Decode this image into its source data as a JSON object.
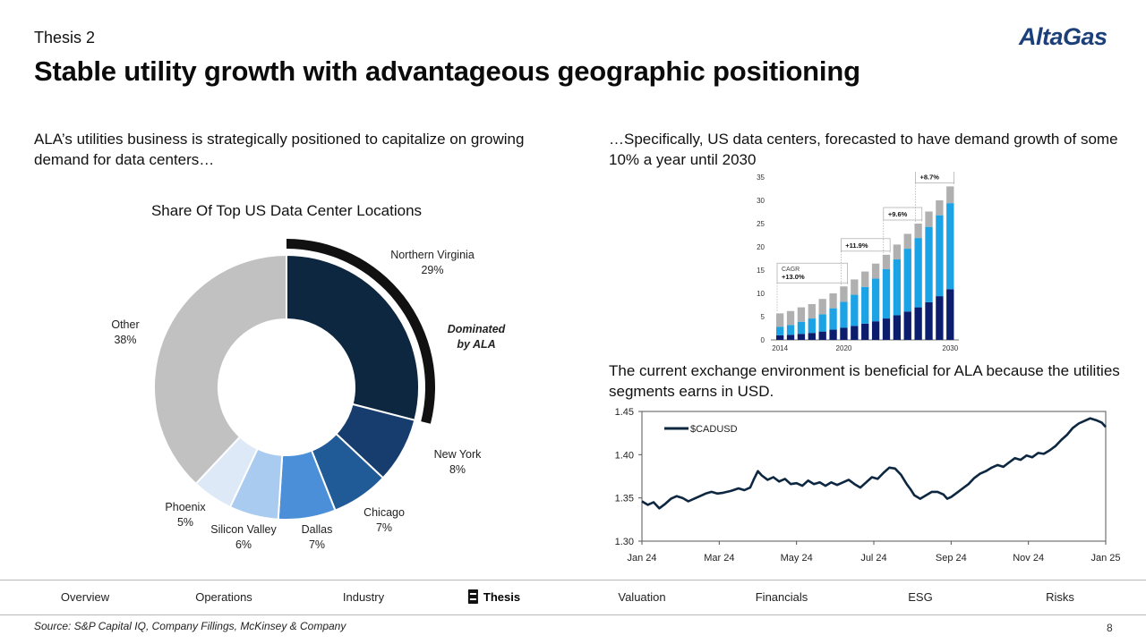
{
  "header": {
    "kicker": "Thesis 2",
    "title": "Stable utility growth with advantageous geographic positioning",
    "logo_text": "AltaGas"
  },
  "left": {
    "intro": "ALA’s utilities business is strategically positioned to capitalize on growing demand for data centers…"
  },
  "right": {
    "intro": "…Specifically, US data centers, forecasted to have demand growth of some 10% a year until 2030",
    "fx_text": "The current exchange environment is beneficial for ALA because the utilities segments earns in USD."
  },
  "colors": {
    "navy": "#0e2741",
    "logo": "#1c3f7a",
    "highlight_arc": "#111111"
  },
  "chart_data": [
    {
      "type": "pie",
      "title": "Share Of Top US Data Center Locations",
      "slices": [
        {
          "label": "Northern Virginia",
          "pct_label": "29%",
          "value": 29,
          "color": "#0e2741"
        },
        {
          "label": "New York",
          "pct_label": "8%",
          "value": 8,
          "color": "#173d6f"
        },
        {
          "label": "Chicago",
          "pct_label": "7%",
          "value": 7,
          "color": "#215b97"
        },
        {
          "label": "Dallas",
          "pct_label": "7%",
          "value": 7,
          "color": "#4a8fd8"
        },
        {
          "label": "Silicon Valley",
          "pct_label": "6%",
          "value": 6,
          "color": "#a9cbef"
        },
        {
          "label": "Phoenix",
          "pct_label": "5%",
          "value": 5,
          "color": "#dde9f7"
        },
        {
          "label": "Other",
          "pct_label": "38%",
          "value": 38,
          "color": "#c1c1c1"
        }
      ],
      "annotation": {
        "line1": "Dominated",
        "line2": "by ALA"
      }
    },
    {
      "type": "bar",
      "stacked": true,
      "x": [
        2014,
        2015,
        2016,
        2017,
        2018,
        2019,
        2020,
        2021,
        2022,
        2023,
        2024,
        2025,
        2026,
        2027,
        2028,
        2029,
        2030
      ],
      "tick_labels": [
        "2014",
        "2020",
        "2030"
      ],
      "ylim": [
        0,
        35
      ],
      "yticks": [
        "0",
        "5",
        "10",
        "15",
        "20",
        "25",
        "30",
        "35"
      ],
      "series": [
        {
          "color": "#0c1d6e",
          "values": [
            1.0,
            1.1,
            1.3,
            1.5,
            1.8,
            2.2,
            2.6,
            3.0,
            3.5,
            4.0,
            4.6,
            5.3,
            6.1,
            7.0,
            8.1,
            9.4,
            10.9
          ]
        },
        {
          "color": "#1ba3e6",
          "values": [
            1.8,
            2.1,
            2.6,
            3.1,
            3.7,
            4.6,
            5.6,
            6.7,
            7.9,
            9.2,
            10.6,
            12.0,
            13.5,
            14.9,
            16.2,
            17.4,
            18.5
          ]
        },
        {
          "color": "#b0b0b0",
          "values": [
            2.9,
            3.0,
            3.1,
            3.1,
            3.3,
            3.2,
            3.3,
            3.3,
            3.3,
            3.2,
            3.1,
            3.2,
            3.2,
            3.1,
            3.3,
            3.2,
            3.6
          ]
        }
      ],
      "cagr_labels": [
        {
          "line1": "CAGR",
          "line2": "+13.0%"
        },
        {
          "line1": "",
          "line2": "+11.9%"
        },
        {
          "line1": "",
          "line2": "+9.6%"
        },
        {
          "line1": "",
          "line2": "+8.7%"
        }
      ]
    },
    {
      "type": "line",
      "legend": "$CADUSD",
      "legend_position": "top-left",
      "ylim": [
        1.3,
        1.45
      ],
      "yticks": [
        "1.45",
        "1.40",
        "1.35",
        "1.30"
      ],
      "xticks": [
        "Jan 24",
        "Mar 24",
        "May 24",
        "Jul 24",
        "Sep 24",
        "Nov 24",
        "Jan 25"
      ],
      "x_month_offsets": [
        0,
        2,
        4,
        6,
        8,
        10,
        12
      ],
      "points": [
        [
          0,
          1.346
        ],
        [
          0.15,
          1.342
        ],
        [
          0.3,
          1.345
        ],
        [
          0.45,
          1.338
        ],
        [
          0.6,
          1.343
        ],
        [
          0.75,
          1.349
        ],
        [
          0.9,
          1.352
        ],
        [
          1.05,
          1.35
        ],
        [
          1.2,
          1.346
        ],
        [
          1.35,
          1.349
        ],
        [
          1.5,
          1.352
        ],
        [
          1.65,
          1.355
        ],
        [
          1.8,
          1.357
        ],
        [
          1.95,
          1.355
        ],
        [
          2.1,
          1.356
        ],
        [
          2.3,
          1.358
        ],
        [
          2.5,
          1.361
        ],
        [
          2.65,
          1.359
        ],
        [
          2.8,
          1.362
        ],
        [
          2.9,
          1.372
        ],
        [
          3.0,
          1.381
        ],
        [
          3.1,
          1.376
        ],
        [
          3.25,
          1.371
        ],
        [
          3.4,
          1.374
        ],
        [
          3.55,
          1.369
        ],
        [
          3.7,
          1.372
        ],
        [
          3.85,
          1.366
        ],
        [
          4.0,
          1.367
        ],
        [
          4.15,
          1.364
        ],
        [
          4.3,
          1.37
        ],
        [
          4.45,
          1.366
        ],
        [
          4.6,
          1.368
        ],
        [
          4.75,
          1.364
        ],
        [
          4.9,
          1.368
        ],
        [
          5.05,
          1.365
        ],
        [
          5.2,
          1.368
        ],
        [
          5.35,
          1.371
        ],
        [
          5.5,
          1.366
        ],
        [
          5.65,
          1.362
        ],
        [
          5.8,
          1.368
        ],
        [
          5.95,
          1.374
        ],
        [
          6.1,
          1.372
        ],
        [
          6.25,
          1.379
        ],
        [
          6.4,
          1.385
        ],
        [
          6.55,
          1.384
        ],
        [
          6.7,
          1.377
        ],
        [
          6.85,
          1.366
        ],
        [
          6.95,
          1.36
        ],
        [
          7.05,
          1.353
        ],
        [
          7.2,
          1.349
        ],
        [
          7.35,
          1.353
        ],
        [
          7.5,
          1.357
        ],
        [
          7.65,
          1.357
        ],
        [
          7.8,
          1.354
        ],
        [
          7.9,
          1.349
        ],
        [
          8.0,
          1.351
        ],
        [
          8.15,
          1.356
        ],
        [
          8.3,
          1.361
        ],
        [
          8.45,
          1.366
        ],
        [
          8.6,
          1.373
        ],
        [
          8.75,
          1.378
        ],
        [
          8.9,
          1.381
        ],
        [
          9.05,
          1.385
        ],
        [
          9.2,
          1.388
        ],
        [
          9.35,
          1.386
        ],
        [
          9.5,
          1.391
        ],
        [
          9.65,
          1.396
        ],
        [
          9.8,
          1.394
        ],
        [
          9.95,
          1.399
        ],
        [
          10.1,
          1.397
        ],
        [
          10.25,
          1.402
        ],
        [
          10.4,
          1.401
        ],
        [
          10.55,
          1.405
        ],
        [
          10.7,
          1.41
        ],
        [
          10.85,
          1.417
        ],
        [
          11.0,
          1.423
        ],
        [
          11.15,
          1.431
        ],
        [
          11.3,
          1.436
        ],
        [
          11.45,
          1.439
        ],
        [
          11.6,
          1.442
        ],
        [
          11.75,
          1.44
        ],
        [
          11.9,
          1.437
        ],
        [
          12.0,
          1.432
        ]
      ]
    }
  ],
  "nav": {
    "items": [
      {
        "label": "Overview",
        "active": false
      },
      {
        "label": "Operations",
        "active": false
      },
      {
        "label": "Industry",
        "active": false
      },
      {
        "label": "Thesis",
        "active": true
      },
      {
        "label": "Valuation",
        "active": false
      },
      {
        "label": "Financials",
        "active": false
      },
      {
        "label": "ESG",
        "active": false
      },
      {
        "label": "Risks",
        "active": false
      }
    ]
  },
  "footer": {
    "source": "Source: S&P Capital IQ, Company Fillings, McKinsey & Company",
    "page": "8"
  }
}
